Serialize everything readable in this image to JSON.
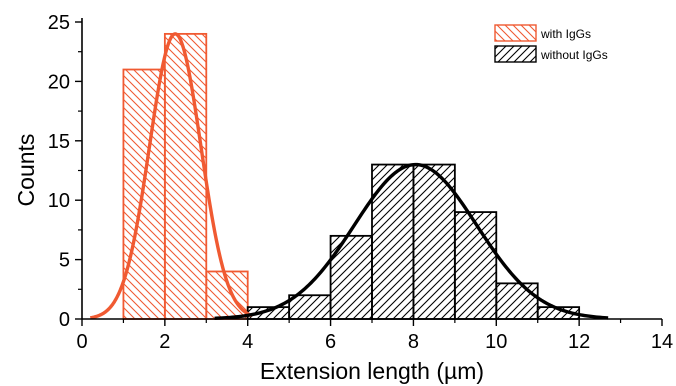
{
  "chart_data": {
    "type": "bar",
    "xlabel": "Extension length (µm)",
    "ylabel": "Counts",
    "xlim": [
      0,
      14
    ],
    "ylim": [
      0,
      25
    ],
    "x_ticks": [
      0,
      2,
      4,
      6,
      8,
      10,
      12,
      14
    ],
    "y_ticks": [
      0,
      5,
      10,
      15,
      20,
      25
    ],
    "grid": false,
    "legend_position": "top-right",
    "series": [
      {
        "name": "with IgGs",
        "color": "#f05a32",
        "hatch": "backslash",
        "bin_width": 1,
        "bins": [
          {
            "x": 1,
            "value": 21
          },
          {
            "x": 2,
            "value": 24
          },
          {
            "x": 3,
            "value": 4
          }
        ],
        "fit": {
          "type": "gaussian",
          "amplitude": 24,
          "center": 2.25,
          "sigma": 0.62,
          "range": [
            0.2,
            4.1
          ]
        }
      },
      {
        "name": "without IgGs",
        "color": "#000000",
        "hatch": "slash",
        "bin_width": 1,
        "bins": [
          {
            "x": 4,
            "value": 1
          },
          {
            "x": 5,
            "value": 2
          },
          {
            "x": 6,
            "value": 7
          },
          {
            "x": 7,
            "value": 13
          },
          {
            "x": 8,
            "value": 13
          },
          {
            "x": 9,
            "value": 9
          },
          {
            "x": 10,
            "value": 3
          },
          {
            "x": 11,
            "value": 1
          }
        ],
        "fit": {
          "type": "gaussian",
          "amplitude": 13,
          "center": 8.05,
          "sigma": 1.48,
          "range": [
            3.2,
            12.7
          ]
        }
      }
    ]
  }
}
